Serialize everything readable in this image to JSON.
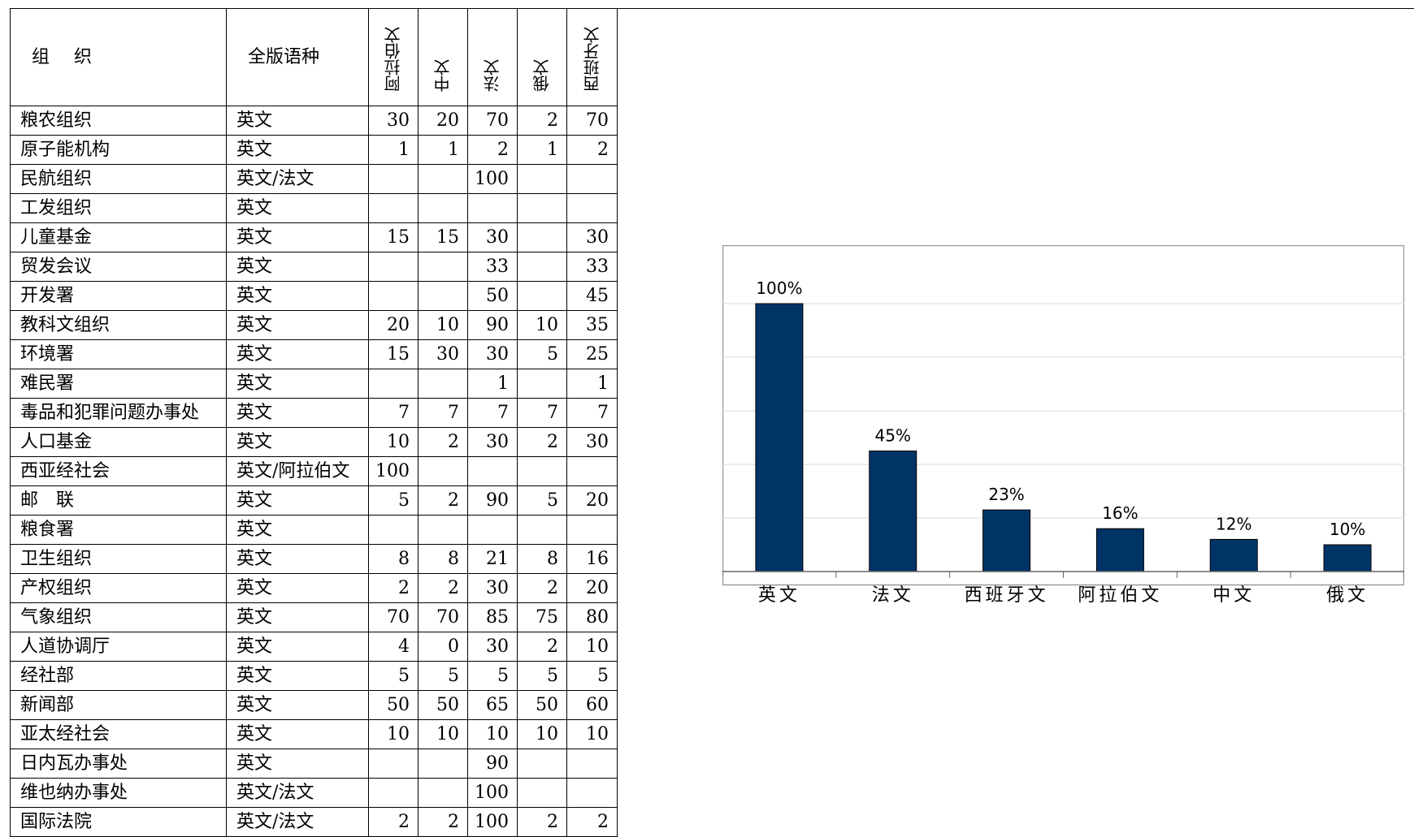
{
  "table": {
    "header": {
      "org": "组　织",
      "full": "全版语种",
      "languages": [
        "阿拉伯文",
        "中文",
        "法文",
        "俄文",
        "西班牙文"
      ]
    },
    "rows": [
      {
        "org": "粮农组织",
        "full": "英文",
        "vals": [
          "30",
          "20",
          "70",
          "2",
          "70"
        ]
      },
      {
        "org": "原子能机构",
        "full": "英文",
        "vals": [
          "1",
          "1",
          "2",
          "1",
          "2"
        ]
      },
      {
        "org": "民航组织",
        "full": "英文/法文",
        "vals": [
          "",
          "",
          "100",
          "",
          ""
        ]
      },
      {
        "org": "工发组织",
        "full": "英文",
        "vals": [
          "",
          "",
          "",
          "",
          ""
        ]
      },
      {
        "org": "儿童基金",
        "full": "英文",
        "vals": [
          "15",
          "15",
          "30",
          "",
          "30"
        ]
      },
      {
        "org": "贸发会议",
        "full": "英文",
        "vals": [
          "",
          "",
          "33",
          "",
          "33"
        ]
      },
      {
        "org": "开发署",
        "full": "英文",
        "vals": [
          "",
          "",
          "50",
          "",
          "45"
        ]
      },
      {
        "org": "教科文组织",
        "full": "英文",
        "vals": [
          "20",
          "10",
          "90",
          "10",
          "35"
        ]
      },
      {
        "org": "环境署",
        "full": "英文",
        "vals": [
          "15",
          "30",
          "30",
          "5",
          "25"
        ]
      },
      {
        "org": "难民署",
        "full": "英文",
        "vals": [
          "",
          "",
          "1",
          "",
          "1"
        ]
      },
      {
        "org": "毒品和犯罪问题办事处",
        "full": "英文",
        "vals": [
          "7",
          "7",
          "7",
          "7",
          "7"
        ]
      },
      {
        "org": "人口基金",
        "full": "英文",
        "vals": [
          "10",
          "2",
          "30",
          "2",
          "30"
        ]
      },
      {
        "org": "西亚经社会",
        "full": "英文/阿拉伯文",
        "vals": [
          "100",
          "",
          "",
          "",
          ""
        ]
      },
      {
        "org": "邮　联",
        "full": "英文",
        "vals": [
          "5",
          "2",
          "90",
          "5",
          "20"
        ]
      },
      {
        "org": "粮食署",
        "full": "英文",
        "vals": [
          "",
          "",
          "",
          "",
          ""
        ]
      },
      {
        "org": "卫生组织",
        "full": "英文",
        "vals": [
          "8",
          "8",
          "21",
          "8",
          "16"
        ]
      },
      {
        "org": "产权组织",
        "full": "英文",
        "vals": [
          "2",
          "2",
          "30",
          "2",
          "20"
        ]
      },
      {
        "org": "气象组织",
        "full": "英文",
        "vals": [
          "70",
          "70",
          "85",
          "75",
          "80"
        ]
      },
      {
        "org": "人道协调厅",
        "full": "英文",
        "vals": [
          "4",
          "0",
          "30",
          "2",
          "10"
        ]
      },
      {
        "org": "经社部",
        "full": "英文",
        "vals": [
          "5",
          "5",
          "5",
          "5",
          "5"
        ]
      },
      {
        "org": "新闻部",
        "full": "英文",
        "vals": [
          "50",
          "50",
          "65",
          "50",
          "60"
        ]
      },
      {
        "org": "亚太经社会",
        "full": "英文",
        "vals": [
          "10",
          "10",
          "10",
          "10",
          "10"
        ]
      },
      {
        "org": "日内瓦办事处",
        "full": "英文",
        "vals": [
          "",
          "",
          "90",
          "",
          ""
        ]
      },
      {
        "org": "维也纳办事处",
        "full": "英文/法文",
        "vals": [
          "",
          "",
          "100",
          "",
          ""
        ]
      },
      {
        "org": "国际法院",
        "full": "英文/法文",
        "vals": [
          "2",
          "2",
          "100",
          "2",
          "2"
        ]
      }
    ]
  },
  "chart_data": {
    "type": "bar",
    "categories": [
      "英文",
      "法文",
      "西班牙文",
      "阿拉伯文",
      "中文",
      "俄文"
    ],
    "values": [
      100,
      45,
      23,
      16,
      12,
      10
    ],
    "labels": [
      "100%",
      "45%",
      "23%",
      "16%",
      "12%",
      "10%"
    ],
    "ylim": [
      0,
      100
    ],
    "grid": true,
    "title": "",
    "xlabel": "",
    "ylabel": "",
    "bar_color": "#003366"
  }
}
